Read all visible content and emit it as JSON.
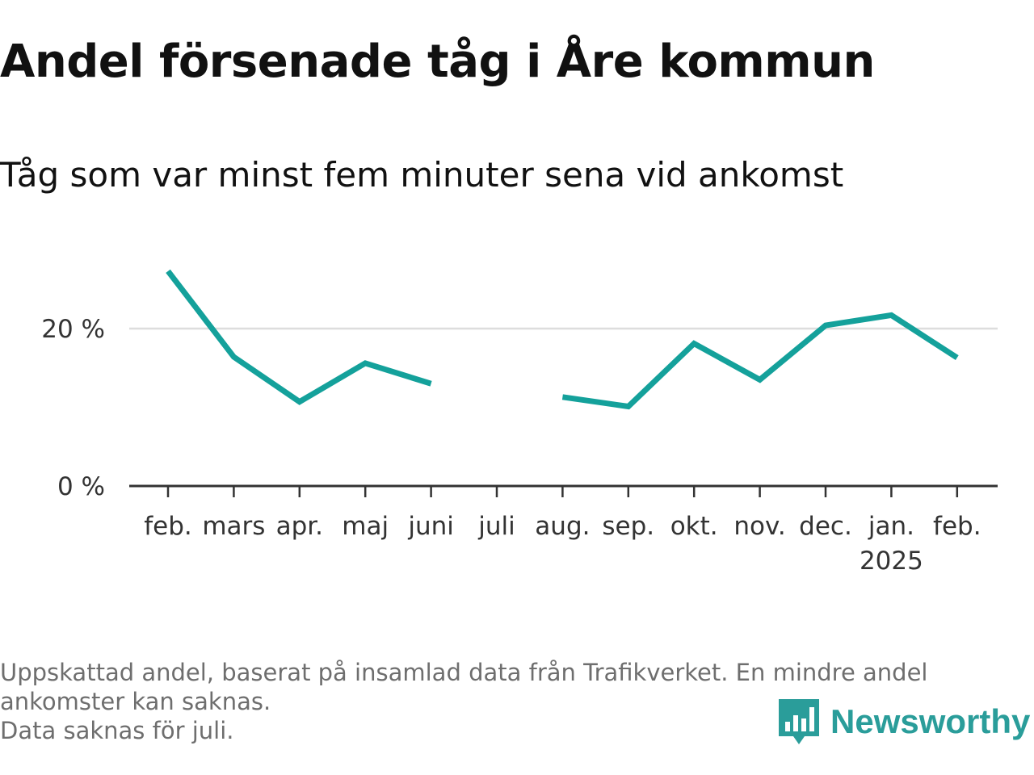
{
  "title": "Andel försenade tåg i Åre kommun",
  "subtitle": "Tåg som var minst fem minuter sena vid ankomst",
  "notes": [
    "Uppskattad andel, baserat på insamlad data från Trafikverket. En mindre andel",
    "ankomster kan saknas.",
    "Data saknas för juli."
  ],
  "brand": {
    "name": "Newsworthy",
    "color": "#2a9d9a"
  },
  "colors": {
    "line": "#14a19b",
    "grid": "#dddddd",
    "axis": "#333333"
  },
  "chart_data": {
    "type": "line",
    "categories": [
      "feb.",
      "mars",
      "apr.",
      "maj",
      "juni",
      "juli",
      "aug.",
      "sep.",
      "okt.",
      "nov.",
      "dec.",
      "jan.",
      "feb."
    ],
    "year_labels": [
      {
        "index": 11,
        "label": "2025"
      }
    ],
    "series": [
      {
        "values": [
          27.3,
          16.4,
          10.7,
          15.6,
          13.0,
          null,
          11.3,
          10.1,
          18.1,
          13.5,
          20.4,
          21.7,
          16.3
        ]
      }
    ],
    "yticks": [
      {
        "value": 0,
        "label": "0 %"
      },
      {
        "value": 20,
        "label": "20 %"
      }
    ],
    "ylim": [
      0,
      30
    ],
    "grid": true,
    "legend": "none"
  }
}
